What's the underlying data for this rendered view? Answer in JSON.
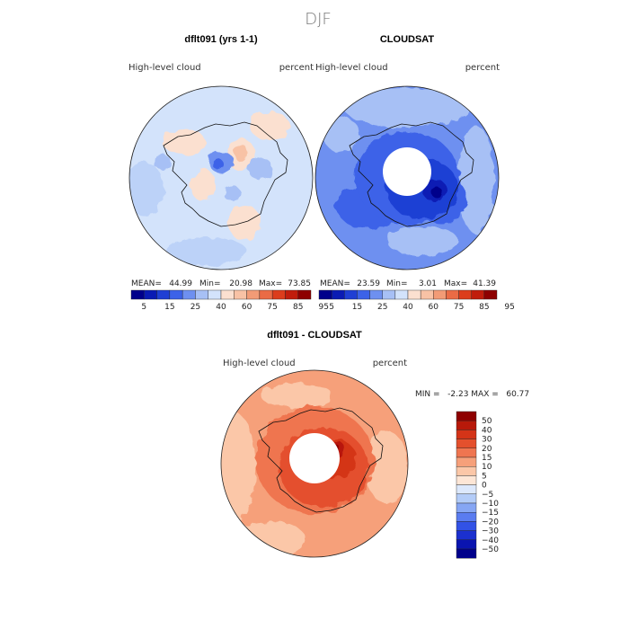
{
  "season": "DJF",
  "panels": [
    {
      "id": "model",
      "title": "dflt091 (yrs 1-1)",
      "field_label": "High-level cloud",
      "units_label": "percent",
      "stats": {
        "mean_label": "MEAN=",
        "mean": "44.99",
        "min_label": "Min=",
        "min": "20.98",
        "max_label": "Max=",
        "max": "73.85"
      }
    },
    {
      "id": "obs",
      "title": "CLOUDSAT",
      "field_label": "High-level cloud",
      "units_label": "percent",
      "stats": {
        "mean_label": "MEAN=",
        "mean": "23.59",
        "min_label": "Min=",
        "min": "3.01",
        "max_label": "Max=",
        "max": "41.39"
      }
    },
    {
      "id": "diff",
      "title": "dflt091 - CLOUDSAT",
      "field_label": "High-level cloud",
      "units_label": "percent",
      "stats_text": "MIN =   -2.23 MAX =   60.77"
    }
  ],
  "colors": {
    "abs_scale": [
      "#00008b",
      "#0a1bb4",
      "#1f3fd4",
      "#3c62e8",
      "#6e90f0",
      "#a7c0f5",
      "#d3e3fb",
      "#fbe0d0",
      "#f8c2a5",
      "#f29b76",
      "#ea6b45",
      "#dc3d1c",
      "#c11d0c",
      "#8e0000"
    ],
    "diff_scale": [
      "#00008b",
      "#0a14b0",
      "#1b30cf",
      "#3252e6",
      "#5a7cf0",
      "#86a6f4",
      "#b3ccf8",
      "#dce8fc",
      "#fde6d6",
      "#fbc7a8",
      "#f6a07a",
      "#ef7550",
      "#e4502d",
      "#d43418",
      "#b8190a",
      "#8e0000"
    ]
  },
  "chart_data": [
    {
      "type": "heatmap",
      "title": "dflt091 (yrs 1-1)",
      "subtitle": "High-level cloud",
      "units": "percent",
      "projection": "south polar stereographic",
      "colorbar_levels": [
        5,
        15,
        25,
        40,
        60,
        75,
        85,
        95
      ],
      "summary": {
        "mean": 44.99,
        "min": 20.98,
        "max": 73.85
      }
    },
    {
      "type": "heatmap",
      "title": "CLOUDSAT",
      "subtitle": "High-level cloud",
      "units": "percent",
      "projection": "south polar stereographic",
      "colorbar_levels": [
        5,
        15,
        25,
        40,
        60,
        75,
        85,
        95
      ],
      "summary": {
        "mean": 23.59,
        "min": 3.01,
        "max": 41.39
      }
    },
    {
      "type": "heatmap",
      "title": "dflt091 - CLOUDSAT",
      "subtitle": "High-level cloud",
      "units": "percent",
      "projection": "south polar stereographic",
      "colorbar_levels": [
        50,
        40,
        30,
        20,
        15,
        10,
        5,
        0,
        -5,
        -10,
        -15,
        -20,
        -30,
        -40,
        -50
      ],
      "summary": {
        "min": -2.23,
        "max": 60.77
      }
    }
  ]
}
